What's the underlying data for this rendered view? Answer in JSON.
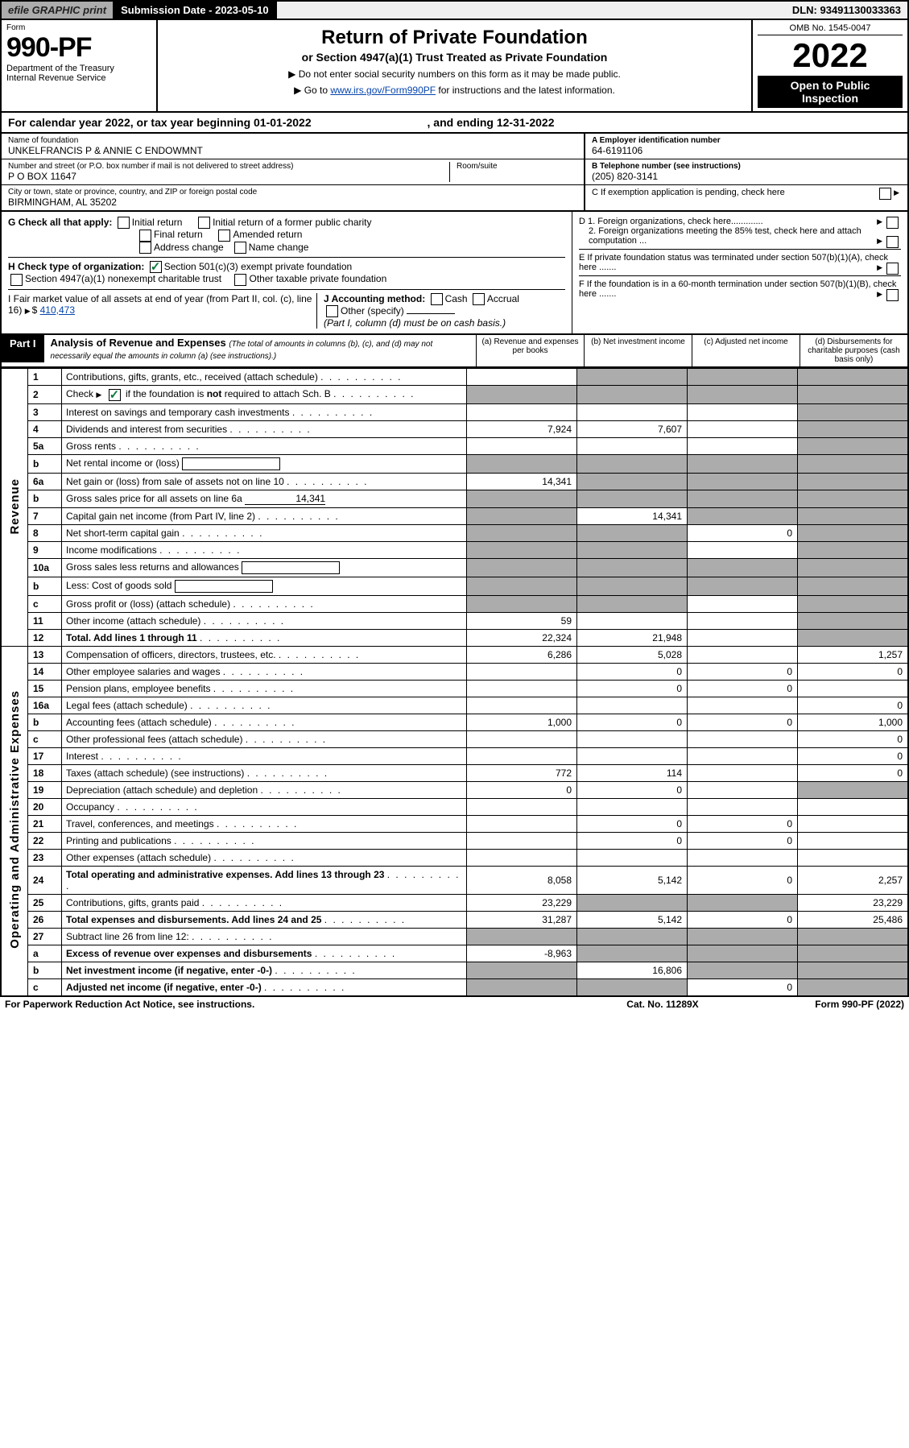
{
  "topbar": {
    "efile": "efile GRAPHIC print",
    "subdate": "Submission Date - 2023-05-10",
    "dln": "DLN: 93491130033363"
  },
  "header": {
    "form_label": "Form",
    "form_number": "990-PF",
    "dept": "Department of the Treasury",
    "irs": "Internal Revenue Service",
    "title": "Return of Private Foundation",
    "subtitle": "or Section 4947(a)(1) Trust Treated as Private Foundation",
    "note1": "▶ Do not enter social security numbers on this form as it may be made public.",
    "note2_pre": "▶ Go to ",
    "note2_link": "www.irs.gov/Form990PF",
    "note2_post": " for instructions and the latest information.",
    "omb": "OMB No. 1545-0047",
    "year": "2022",
    "open": "Open to Public Inspection"
  },
  "calyear": "For calendar year 2022, or tax year beginning 01-01-2022",
  "calyear_end": ", and ending 12-31-2022",
  "id": {
    "name_label": "Name of foundation",
    "name_val": "UNKELFRANCIS P & ANNIE C ENDOWMNT",
    "addr_label": "Number and street (or P.O. box number if mail is not delivered to street address)",
    "addr_val": "P O BOX 11647",
    "room_label": "Room/suite",
    "city_label": "City or town, state or province, country, and ZIP or foreign postal code",
    "city_val": "BIRMINGHAM, AL  35202",
    "ein_label": "A Employer identification number",
    "ein_val": "64-6191106",
    "phone_label": "B Telephone number (see instructions)",
    "phone_val": "(205) 820-3141",
    "c_label": "C If exemption application is pending, check here"
  },
  "g": {
    "label": "G Check all that apply:",
    "initial": "Initial return",
    "initial_public": "Initial return of a former public charity",
    "final": "Final return",
    "amended": "Amended return",
    "addr_change": "Address change",
    "name_change": "Name change"
  },
  "h": {
    "label": "H Check type of organization:",
    "opt1": "Section 501(c)(3) exempt private foundation",
    "opt2": "Section 4947(a)(1) nonexempt charitable trust",
    "opt3": "Other taxable private foundation"
  },
  "d": {
    "d1": "D 1. Foreign organizations, check here.............",
    "d2": "2. Foreign organizations meeting the 85% test, check here and attach computation ...",
    "e": "E  If private foundation status was terminated under section 507(b)(1)(A), check here .......",
    "f": "F  If the foundation is in a 60-month termination under section 507(b)(1)(B), check here .......",
    "i": "I Fair market value of all assets at end of year (from Part II, col. (c), line 16)",
    "i_val": "410,473",
    "j": "J Accounting method:",
    "j_cash": "Cash",
    "j_accrual": "Accrual",
    "j_other": "Other (specify)",
    "j_note": "(Part I, column (d) must be on cash basis.)"
  },
  "part1": {
    "label": "Part I",
    "title": "Analysis of Revenue and Expenses",
    "title_note": "(The total of amounts in columns (b), (c), and (d) may not necessarily equal the amounts in column (a) (see instructions).)",
    "col_a": "(a)  Revenue and expenses per books",
    "col_b": "(b)  Net investment income",
    "col_c": "(c)  Adjusted net income",
    "col_d": "(d)  Disbursements for charitable purposes (cash basis only)"
  },
  "vlabels": {
    "rev": "Revenue",
    "oae": "Operating and Administrative Expenses"
  },
  "rows": [
    {
      "n": "1",
      "d": "Contributions, gifts, grants, etc., received (attach schedule)",
      "a": "",
      "b": "g",
      "c": "g",
      "dd": "g"
    },
    {
      "n": "2",
      "d": "Check ▶ ✓ if the foundation is not required to attach Sch. B",
      "a": "g",
      "b": "g",
      "c": "g",
      "dd": "g",
      "special": "check"
    },
    {
      "n": "3",
      "d": "Interest on savings and temporary cash investments",
      "a": "",
      "b": "",
      "c": "",
      "dd": "g"
    },
    {
      "n": "4",
      "d": "Dividends and interest from securities",
      "a": "7,924",
      "b": "7,607",
      "c": "",
      "dd": "g"
    },
    {
      "n": "5a",
      "d": "Gross rents",
      "a": "",
      "b": "",
      "c": "",
      "dd": "g"
    },
    {
      "n": "b",
      "d": "Net rental income or (loss)",
      "a": "g",
      "b": "g",
      "c": "g",
      "dd": "g",
      "box": true
    },
    {
      "n": "6a",
      "d": "Net gain or (loss) from sale of assets not on line 10",
      "a": "14,341",
      "b": "g",
      "c": "g",
      "dd": "g"
    },
    {
      "n": "b",
      "d": "Gross sales price for all assets on line 6a",
      "a": "g",
      "b": "g",
      "c": "g",
      "dd": "g",
      "inline": "14,341"
    },
    {
      "n": "7",
      "d": "Capital gain net income (from Part IV, line 2)",
      "a": "g",
      "b": "14,341",
      "c": "g",
      "dd": "g"
    },
    {
      "n": "8",
      "d": "Net short-term capital gain",
      "a": "g",
      "b": "g",
      "c": "0",
      "dd": "g"
    },
    {
      "n": "9",
      "d": "Income modifications",
      "a": "g",
      "b": "g",
      "c": "",
      "dd": "g"
    },
    {
      "n": "10a",
      "d": "Gross sales less returns and allowances",
      "a": "g",
      "b": "g",
      "c": "g",
      "dd": "g",
      "box": true
    },
    {
      "n": "b",
      "d": "Less: Cost of goods sold",
      "a": "g",
      "b": "g",
      "c": "g",
      "dd": "g",
      "box": true
    },
    {
      "n": "c",
      "d": "Gross profit or (loss) (attach schedule)",
      "a": "g",
      "b": "g",
      "c": "",
      "dd": "g"
    },
    {
      "n": "11",
      "d": "Other income (attach schedule)",
      "a": "59",
      "b": "",
      "c": "",
      "dd": "g"
    },
    {
      "n": "12",
      "d": "Total. Add lines 1 through 11",
      "a": "22,324",
      "b": "21,948",
      "c": "",
      "dd": "g",
      "bold": true
    }
  ],
  "exp_rows": [
    {
      "n": "13",
      "d": "Compensation of officers, directors, trustees, etc.",
      "a": "6,286",
      "b": "5,028",
      "c": "",
      "dd": "1,257"
    },
    {
      "n": "14",
      "d": "Other employee salaries and wages",
      "a": "",
      "b": "0",
      "c": "0",
      "dd": "0"
    },
    {
      "n": "15",
      "d": "Pension plans, employee benefits",
      "a": "",
      "b": "0",
      "c": "0",
      "dd": ""
    },
    {
      "n": "16a",
      "d": "Legal fees (attach schedule)",
      "a": "",
      "b": "",
      "c": "",
      "dd": "0"
    },
    {
      "n": "b",
      "d": "Accounting fees (attach schedule)",
      "a": "1,000",
      "b": "0",
      "c": "0",
      "dd": "1,000"
    },
    {
      "n": "c",
      "d": "Other professional fees (attach schedule)",
      "a": "",
      "b": "",
      "c": "",
      "dd": "0"
    },
    {
      "n": "17",
      "d": "Interest",
      "a": "",
      "b": "",
      "c": "",
      "dd": "0"
    },
    {
      "n": "18",
      "d": "Taxes (attach schedule) (see instructions)",
      "a": "772",
      "b": "114",
      "c": "",
      "dd": "0"
    },
    {
      "n": "19",
      "d": "Depreciation (attach schedule) and depletion",
      "a": "0",
      "b": "0",
      "c": "",
      "dd": "g"
    },
    {
      "n": "20",
      "d": "Occupancy",
      "a": "",
      "b": "",
      "c": "",
      "dd": ""
    },
    {
      "n": "21",
      "d": "Travel, conferences, and meetings",
      "a": "",
      "b": "0",
      "c": "0",
      "dd": ""
    },
    {
      "n": "22",
      "d": "Printing and publications",
      "a": "",
      "b": "0",
      "c": "0",
      "dd": ""
    },
    {
      "n": "23",
      "d": "Other expenses (attach schedule)",
      "a": "",
      "b": "",
      "c": "",
      "dd": ""
    },
    {
      "n": "24",
      "d": "Total operating and administrative expenses. Add lines 13 through 23",
      "a": "8,058",
      "b": "5,142",
      "c": "0",
      "dd": "2,257",
      "bold": true
    },
    {
      "n": "25",
      "d": "Contributions, gifts, grants paid",
      "a": "23,229",
      "b": "g",
      "c": "g",
      "dd": "23,229"
    },
    {
      "n": "26",
      "d": "Total expenses and disbursements. Add lines 24 and 25",
      "a": "31,287",
      "b": "5,142",
      "c": "0",
      "dd": "25,486",
      "bold": true
    },
    {
      "n": "27",
      "d": "Subtract line 26 from line 12:",
      "a": "g",
      "b": "g",
      "c": "g",
      "dd": "g"
    },
    {
      "n": "a",
      "d": "Excess of revenue over expenses and disbursements",
      "a": "-8,963",
      "b": "g",
      "c": "g",
      "dd": "g",
      "bold": true
    },
    {
      "n": "b",
      "d": "Net investment income (if negative, enter -0-)",
      "a": "g",
      "b": "16,806",
      "c": "g",
      "dd": "g",
      "bold": true
    },
    {
      "n": "c",
      "d": "Adjusted net income (if negative, enter -0-)",
      "a": "g",
      "b": "g",
      "c": "0",
      "dd": "g",
      "bold": true
    }
  ],
  "footer": {
    "left": "For Paperwork Reduction Act Notice, see instructions.",
    "mid": "Cat. No. 11289X",
    "right": "Form 990-PF (2022)"
  }
}
